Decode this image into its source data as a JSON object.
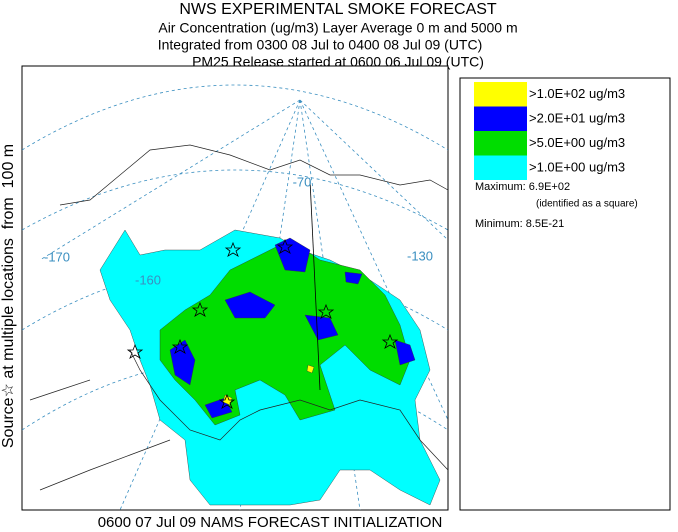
{
  "header": {
    "title": "NWS EXPERIMENTAL SMOKE FORECAST",
    "lines": [
      "Air Concentration (ug/m3) Layer Average    0 m and  5000 m",
      "Integrated from 0300 08 Jul to 0400 08 Jul 09 (UTC)",
      "PM25 Release started at 0600 06 Jul 09 (UTC)"
    ]
  },
  "side_label": "Source☆ at multiple locations  from  100 m",
  "legend": {
    "items": [
      {
        "label": ">1.0E+02 ug/m3",
        "color": "#ffff00"
      },
      {
        "label": ">2.0E+01 ug/m3",
        "color": "#0000ff"
      },
      {
        "label": ">5.0E+00 ug/m3",
        "color": "#00dd00"
      },
      {
        "label": ">1.0E+00 ug/m3",
        "color": "#00ffff"
      }
    ],
    "maximum": "Maximum: 6.9E+02",
    "maximum_note": "(identified as a square)",
    "minimum": "Minimum: 8.5E-21"
  },
  "map": {
    "labels": [
      "-170",
      "-160",
      "-70",
      "-130"
    ]
  },
  "footer": "0600 07 Jul 09 NAMS FORECAST INITIALIZATION"
}
